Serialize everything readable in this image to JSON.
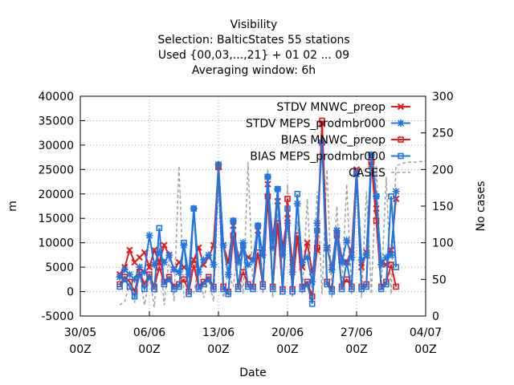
{
  "chart_data": {
    "type": "line",
    "title": "Visibility",
    "subtitle_lines": [
      "Selection: BalticStates     55 stations",
      "Used {00,03,...,21} + 01 02 ... 09",
      "Averaging window:  6h"
    ],
    "xlabel": "Date",
    "ylabel": "m",
    "y2label": "No cases",
    "xlim": [
      0,
      35
    ],
    "ylim": [
      -5000,
      40000
    ],
    "y2lim": [
      0,
      300
    ],
    "grid": true,
    "legend_position": "top-right",
    "x_ticks": [
      {
        "value": 0,
        "line1": "30/05",
        "line2": "00Z"
      },
      {
        "value": 7,
        "line1": "06/06",
        "line2": "00Z"
      },
      {
        "value": 14,
        "line1": "13/06",
        "line2": "00Z"
      },
      {
        "value": 21,
        "line1": "20/06",
        "line2": "00Z"
      },
      {
        "value": 28,
        "line1": "27/06",
        "line2": "00Z"
      },
      {
        "value": 35,
        "line1": "04/07",
        "line2": "00Z"
      }
    ],
    "y_ticks": [
      -5000,
      0,
      5000,
      10000,
      15000,
      20000,
      25000,
      30000,
      35000,
      40000
    ],
    "y2_ticks": [
      0,
      50,
      100,
      150,
      200,
      250,
      300
    ],
    "series": [
      {
        "name": "STDV MNWC_preop",
        "color": "#e41a1c",
        "marker": "cross",
        "axis": "y",
        "x": [
          4.0,
          4.5,
          5.0,
          5.5,
          6.0,
          6.5,
          7.0,
          7.5,
          8.0,
          8.5,
          9.0,
          9.5,
          10.0,
          10.5,
          11.0,
          11.5,
          12.0,
          12.5,
          13.0,
          13.5,
          14.0,
          14.5,
          15.0,
          15.5,
          16.0,
          16.5,
          17.0,
          17.5,
          18.0,
          18.5,
          19.0,
          19.5,
          20.0,
          20.5,
          21.0,
          21.5,
          22.0,
          22.5,
          23.0,
          23.5,
          24.0,
          24.5,
          25.0,
          25.5,
          26.0,
          26.5,
          27.0,
          27.5,
          28.0,
          28.5,
          29.0,
          29.5,
          30.0,
          30.5,
          31.0,
          31.5,
          32.0
        ],
        "y": [
          3500,
          5000,
          8500,
          6000,
          7000,
          8000,
          5000,
          8500,
          6000,
          9500,
          7500,
          4500,
          6000,
          5000,
          4000,
          6500,
          9000,
          5500,
          7000,
          9500,
          25500,
          9500,
          6000,
          13500,
          7000,
          8500,
          7000,
          6500,
          12500,
          8000,
          22000,
          11000,
          18500,
          9000,
          15000,
          6000,
          11000,
          5000,
          10000,
          4000,
          8500,
          34500,
          9000,
          5000,
          12500,
          7000,
          6000,
          8500,
          25000,
          5000,
          8000,
          26000,
          17000,
          6000,
          5500,
          8500,
          19000
        ]
      },
      {
        "name": "STDV MEPS_prodmbr000",
        "color": "#1f77e4",
        "marker": "star",
        "axis": "y",
        "x": [
          4.0,
          4.5,
          5.0,
          5.5,
          6.0,
          6.5,
          7.0,
          7.5,
          8.0,
          8.5,
          9.0,
          9.5,
          10.0,
          10.5,
          11.0,
          11.5,
          12.0,
          12.5,
          13.0,
          13.5,
          14.0,
          14.5,
          15.0,
          15.5,
          16.0,
          16.5,
          17.0,
          17.5,
          18.0,
          18.5,
          19.0,
          19.5,
          20.0,
          20.5,
          21.0,
          21.5,
          22.0,
          22.5,
          23.0,
          23.5,
          24.0,
          24.5,
          25.0,
          25.5,
          26.0,
          26.5,
          27.0,
          27.5,
          28.0,
          28.5,
          29.0,
          29.5,
          30.0,
          30.5,
          31.0,
          31.5,
          32.0
        ],
        "y": [
          3000,
          4500,
          3500,
          2500,
          5000,
          4000,
          11500,
          5500,
          8000,
          6000,
          7500,
          4500,
          4000,
          9500,
          3500,
          17000,
          4000,
          6500,
          7500,
          5500,
          26000,
          9500,
          3500,
          14500,
          6000,
          10000,
          5500,
          6500,
          13500,
          7500,
          23500,
          9000,
          21000,
          7500,
          14000,
          4000,
          18000,
          6000,
          7000,
          2000,
          14000,
          30500,
          9000,
          4500,
          12500,
          6000,
          10500,
          7000,
          24000,
          6500,
          7500,
          28000,
          19500,
          5500,
          7000,
          7500,
          20500
        ]
      },
      {
        "name": "BIAS MNWC_preop",
        "color": "#e41a1c",
        "marker": "square",
        "axis": "y",
        "x": [
          4.0,
          4.5,
          5.0,
          5.5,
          6.0,
          6.5,
          7.0,
          7.5,
          8.0,
          8.5,
          9.0,
          9.5,
          10.0,
          10.5,
          11.0,
          11.5,
          12.0,
          12.5,
          13.0,
          13.5,
          14.0,
          14.5,
          15.0,
          15.5,
          16.0,
          16.5,
          17.0,
          17.5,
          18.0,
          18.5,
          19.0,
          19.5,
          20.0,
          20.5,
          21.0,
          21.5,
          22.0,
          22.5,
          23.0,
          23.5,
          24.0,
          24.5,
          25.0,
          25.5,
          26.0,
          26.5,
          27.0,
          27.5,
          28.0,
          28.5,
          29.0,
          29.5,
          30.0,
          30.5,
          31.0,
          31.5,
          32.0
        ],
        "y": [
          1500,
          3000,
          2000,
          0,
          4000,
          1500,
          3500,
          1000,
          5000,
          2000,
          3000,
          1000,
          1500,
          2500,
          0,
          5500,
          1000,
          2000,
          3000,
          1000,
          25500,
          1000,
          0,
          11500,
          1000,
          4000,
          1500,
          1000,
          8000,
          1500,
          19500,
          1000,
          14000,
          500,
          19000,
          500,
          11500,
          1000,
          2000,
          -1000,
          9000,
          35000,
          2000,
          500,
          11500,
          1000,
          2500,
          1000,
          24500,
          1000,
          1500,
          26500,
          14500,
          1000,
          2000,
          5500,
          1000
        ]
      },
      {
        "name": "BIAS MEPS_prodmbr000",
        "color": "#1f77e4",
        "marker": "square",
        "axis": "y",
        "x": [
          4.0,
          4.5,
          5.0,
          5.5,
          6.0,
          6.5,
          7.0,
          7.5,
          8.0,
          8.5,
          9.0,
          9.5,
          10.0,
          10.5,
          11.0,
          11.5,
          12.0,
          12.5,
          13.0,
          13.5,
          14.0,
          14.5,
          15.0,
          15.5,
          16.0,
          16.5,
          17.0,
          17.5,
          18.0,
          18.5,
          19.0,
          19.5,
          20.0,
          20.5,
          21.0,
          21.5,
          22.0,
          22.5,
          23.0,
          23.5,
          24.0,
          24.5,
          25.0,
          25.5,
          26.0,
          26.5,
          27.0,
          27.5,
          28.0,
          28.5,
          29.0,
          29.5,
          30.0,
          30.5,
          31.0,
          31.5,
          32.0
        ],
        "y": [
          1000,
          2500,
          1000,
          -1000,
          3500,
          500,
          3000,
          500,
          13000,
          1500,
          2500,
          500,
          1000,
          10000,
          -500,
          17000,
          500,
          1500,
          2500,
          500,
          26000,
          500,
          -500,
          14500,
          500,
          9500,
          1000,
          500,
          13500,
          1000,
          23500,
          500,
          21000,
          0,
          17000,
          0,
          20000,
          500,
          1500,
          -2500,
          12500,
          30500,
          1500,
          0,
          12000,
          500,
          6000,
          500,
          24500,
          500,
          1000,
          28000,
          19500,
          500,
          1500,
          19500,
          5000
        ]
      },
      {
        "name": "CASES",
        "color": "#a0a0a0",
        "marker": "none",
        "dashed": true,
        "axis": "y2",
        "x": [
          4.0,
          4.5,
          5.0,
          5.5,
          6.0,
          6.5,
          7.0,
          7.5,
          8.0,
          8.5,
          9.0,
          9.5,
          10.0,
          10.5,
          11.0,
          11.5,
          12.0,
          12.5,
          13.0,
          13.5,
          14.0,
          14.5,
          15.0,
          15.5,
          16.0,
          16.5,
          17.0,
          17.5,
          18.0,
          18.5,
          19.0,
          19.5,
          20.0,
          20.5,
          21.0,
          21.5,
          22.0,
          22.5,
          23.0,
          23.5,
          24.0,
          24.5,
          25.0,
          25.5,
          26.0,
          26.5,
          27.0,
          27.5,
          28.0,
          28.5,
          29.0,
          29.5,
          30.0,
          30.5,
          31.0,
          31.5,
          32.0,
          33.0,
          34.0,
          35.0
        ],
        "y": [
          15,
          20,
          45,
          18,
          60,
          15,
          55,
          12,
          100,
          15,
          80,
          20,
          205,
          25,
          40,
          30,
          70,
          25,
          50,
          20,
          180,
          25,
          60,
          40,
          90,
          30,
          210,
          35,
          120,
          30,
          200,
          25,
          140,
          35,
          180,
          25,
          130,
          30,
          160,
          25,
          170,
          30,
          200,
          25,
          150,
          35,
          180,
          30,
          200,
          25,
          170,
          30,
          205,
          35,
          190,
          30,
          205,
          210,
          210,
          212
        ]
      }
    ]
  }
}
